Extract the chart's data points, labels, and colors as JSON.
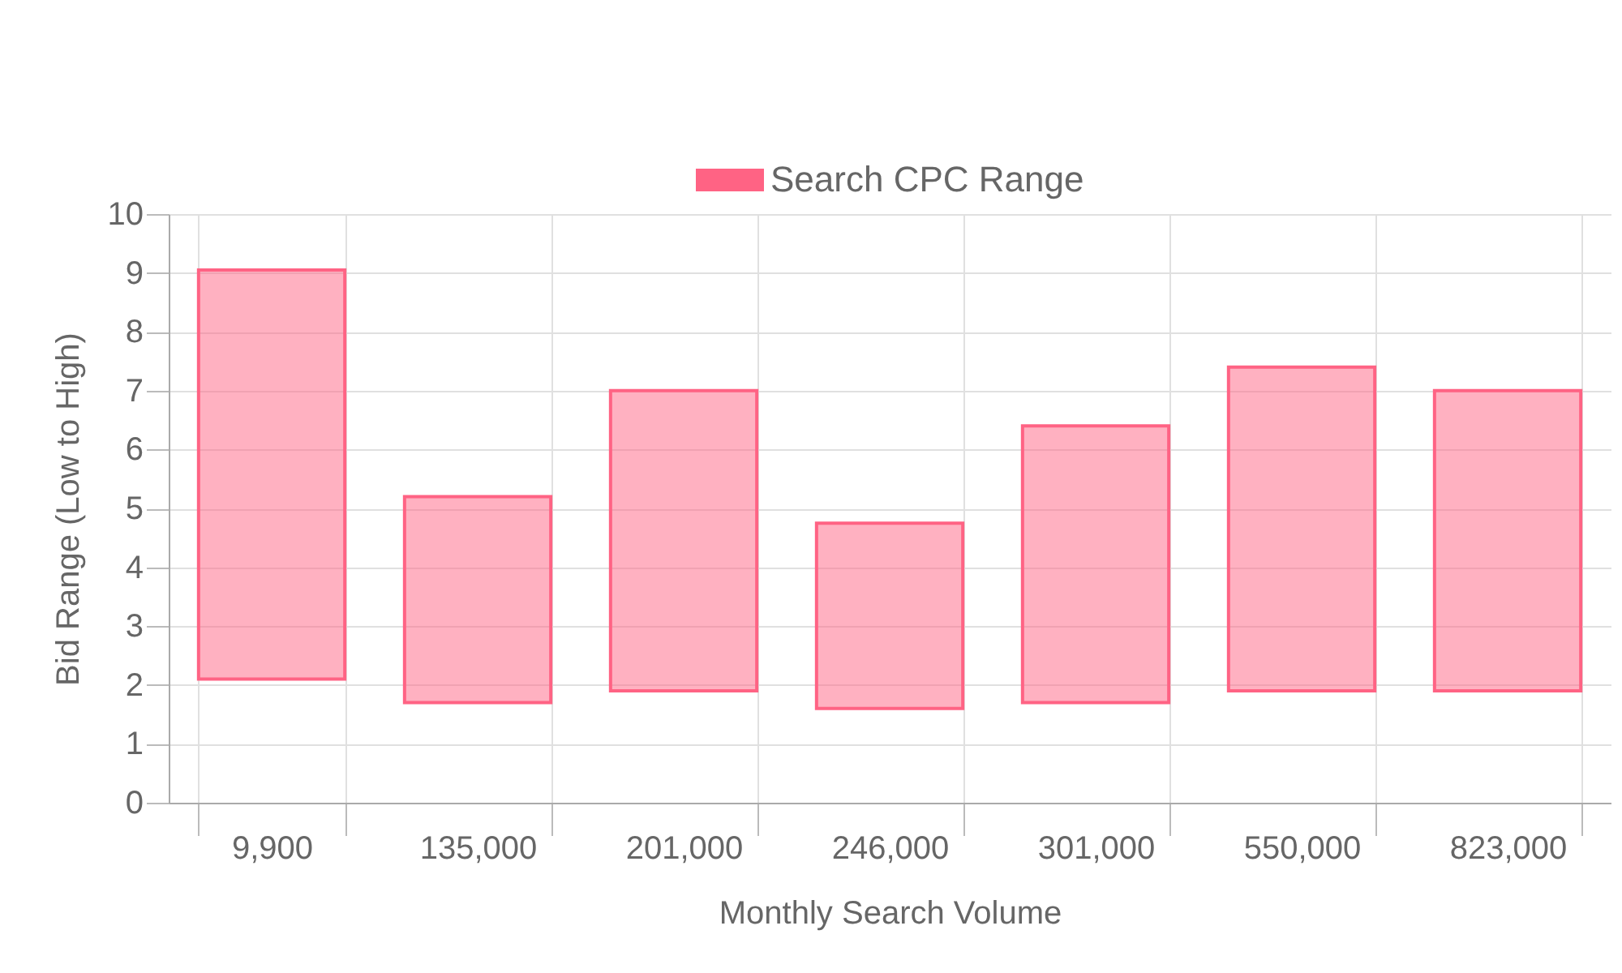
{
  "chart_data": {
    "type": "bar",
    "xlabel": "Monthly Search Volume",
    "ylabel": "Bid Range (Low to High)",
    "categories": [
      "9,900",
      "135,000",
      "201,000",
      "246,000",
      "301,000",
      "550,000",
      "823,000"
    ],
    "series": [
      {
        "name": "Search CPC Range",
        "color": "#ff6384",
        "base": [
          2.1,
          1.7,
          1.9,
          1.6,
          1.7,
          1.9,
          1.9
        ],
        "values": [
          6.95,
          3.5,
          5.1,
          3.15,
          4.7,
          5.5,
          5.1
        ]
      }
    ],
    "ylim": [
      0,
      10
    ],
    "yticks": [
      0,
      1,
      2,
      3,
      4,
      5,
      6,
      7,
      8,
      9,
      10
    ],
    "grid": true,
    "legend": "top"
  }
}
